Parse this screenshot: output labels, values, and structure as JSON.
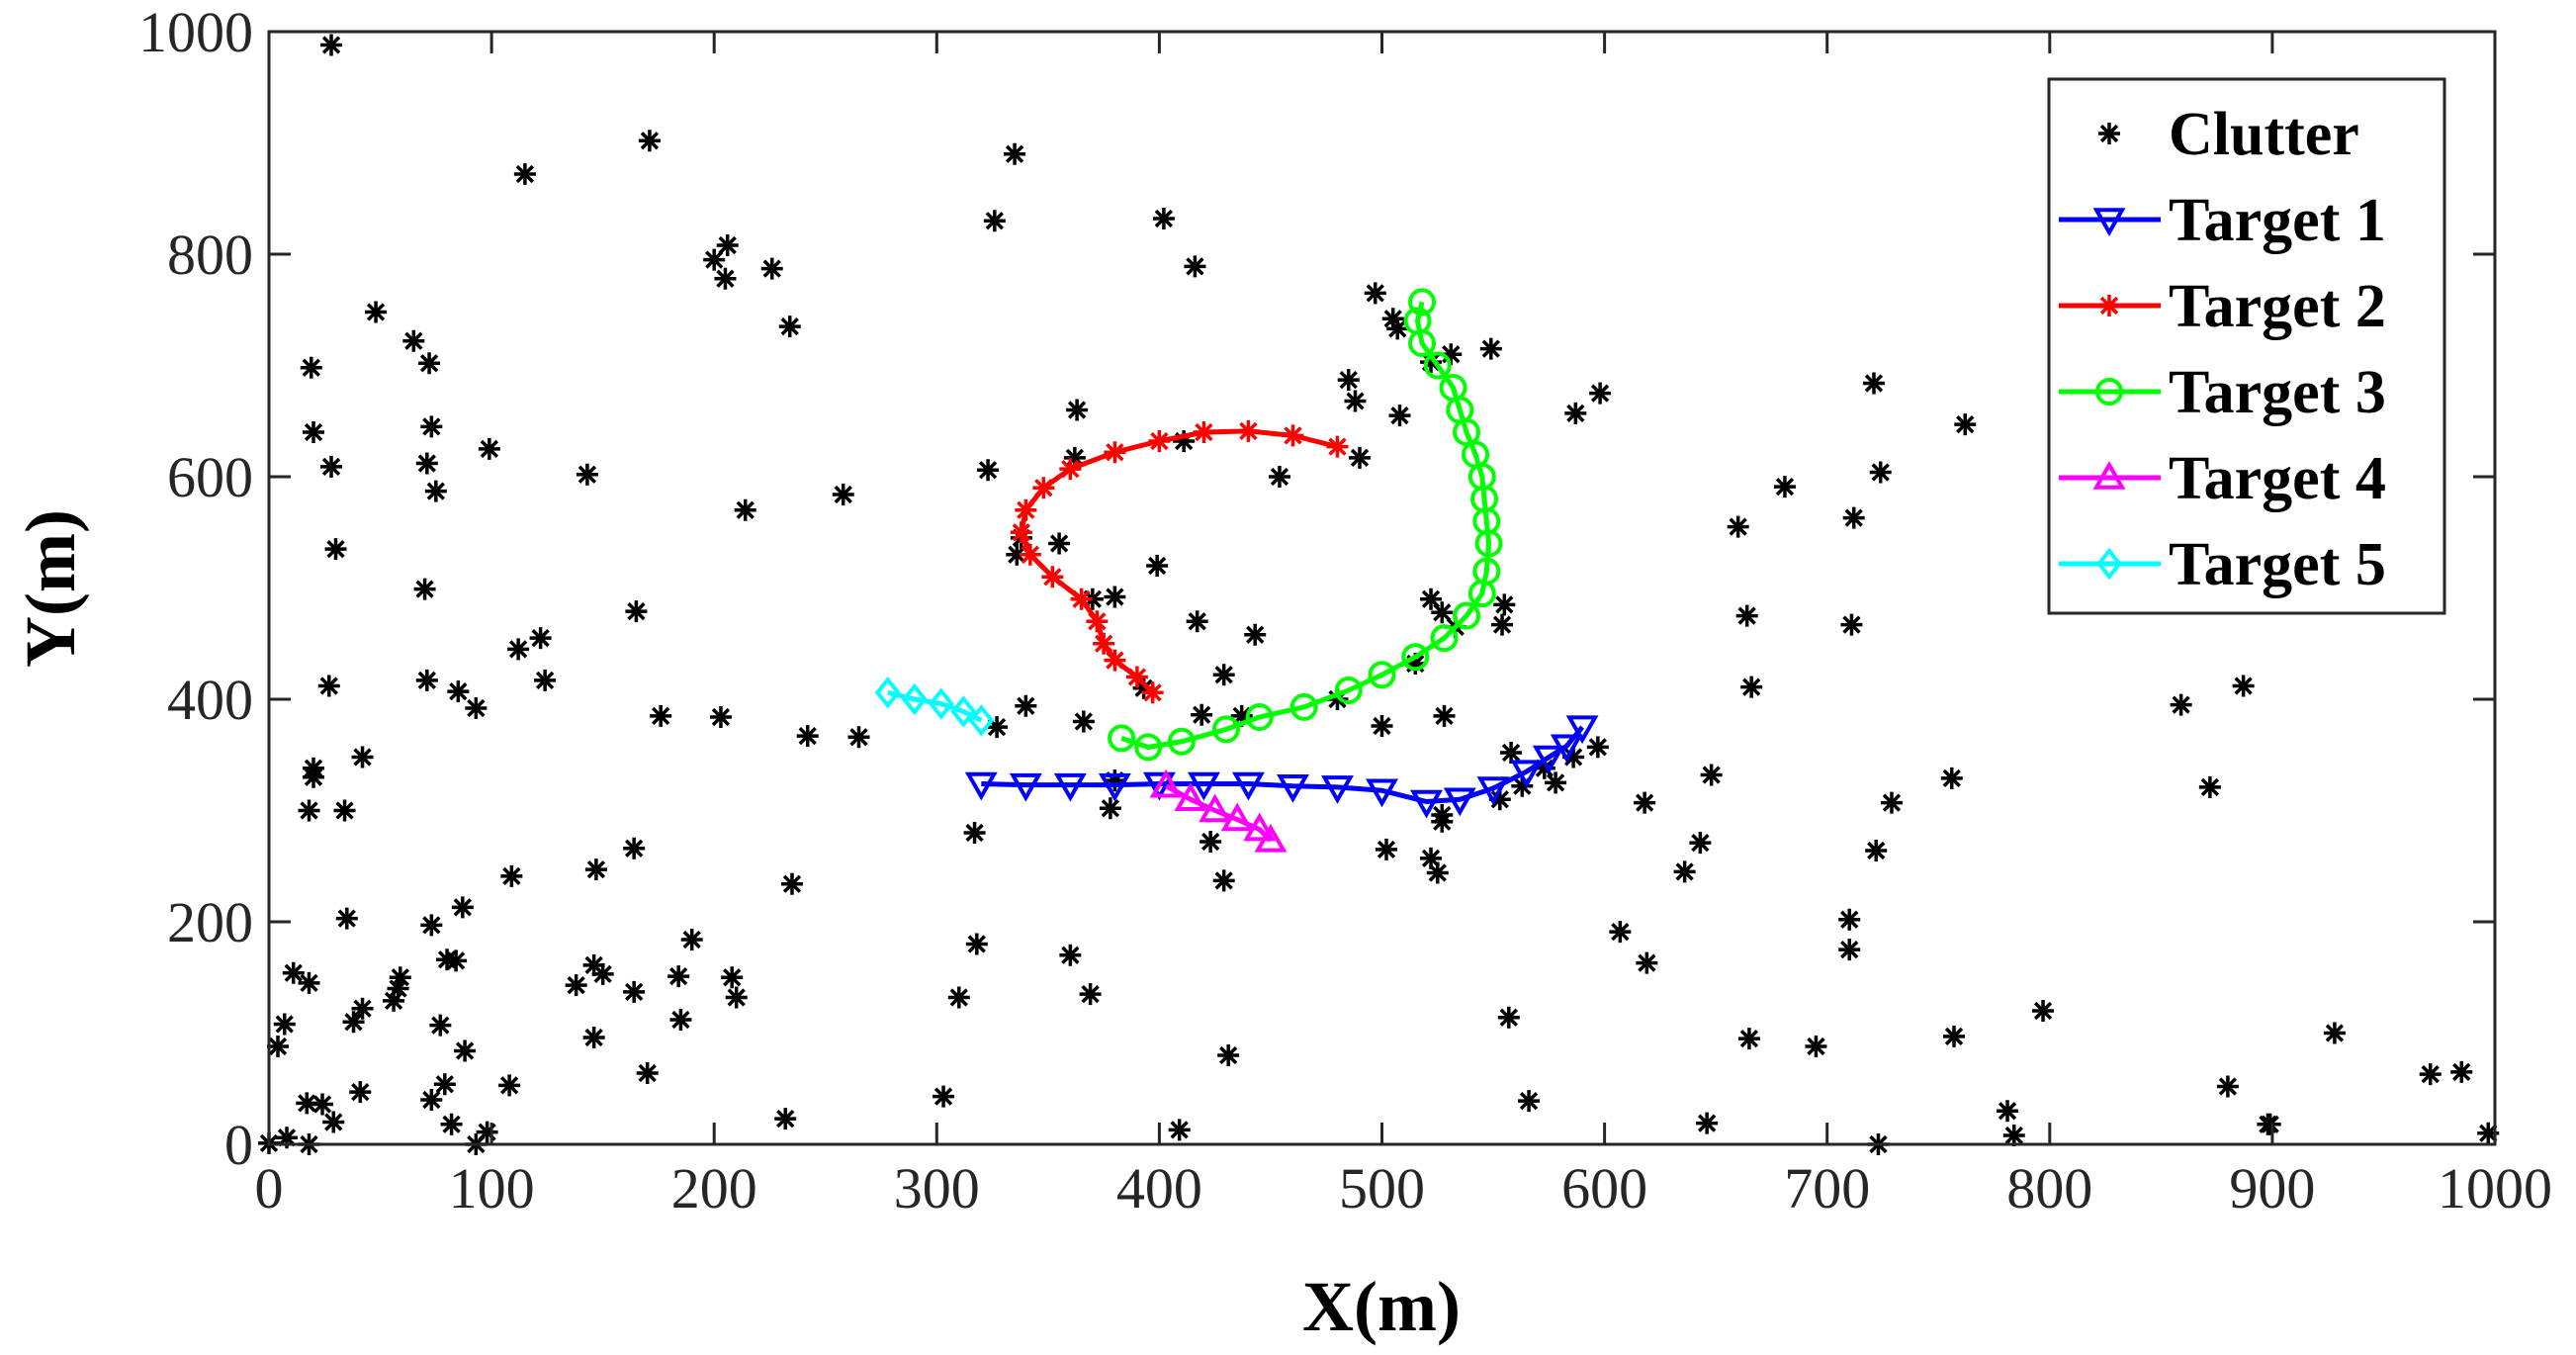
{
  "chart_data": {
    "type": "scatter",
    "xlabel": "X(m)",
    "ylabel": "Y(m)",
    "xlim": [
      0,
      1000
    ],
    "ylim": [
      0,
      1000
    ],
    "xticks": [
      "0",
      "100",
      "200",
      "300",
      "400",
      "500",
      "600",
      "700",
      "800",
      "900",
      "1000"
    ],
    "yticks": [
      "0",
      "200",
      "400",
      "600",
      "800",
      "1000"
    ],
    "grid": false,
    "legend_position": "top-right",
    "clutter": {
      "name": "Clutter",
      "color": "#000000",
      "marker": "asterisk",
      "points": [
        [
          28,
          988
        ],
        [
          171,
          902
        ],
        [
          335,
          890
        ],
        [
          115,
          872
        ],
        [
          326,
          830
        ],
        [
          402,
          832
        ],
        [
          416,
          789
        ],
        [
          200,
          795
        ],
        [
          206,
          808
        ],
        [
          226,
          787
        ],
        [
          205,
          778
        ],
        [
          234,
          735
        ],
        [
          48,
          748
        ],
        [
          65,
          722
        ],
        [
          72,
          702
        ],
        [
          19,
          698
        ],
        [
          497,
          765
        ],
        [
          505,
          742
        ],
        [
          507,
          733
        ],
        [
          531,
          710
        ],
        [
          549,
          715
        ],
        [
          522,
          703
        ],
        [
          485,
          687
        ],
        [
          488,
          668
        ],
        [
          598,
          675
        ],
        [
          587,
          657
        ],
        [
          508,
          655
        ],
        [
          20,
          640
        ],
        [
          73,
          645
        ],
        [
          99,
          625
        ],
        [
          71,
          612
        ],
        [
          28,
          609
        ],
        [
          75,
          587
        ],
        [
          143,
          602
        ],
        [
          214,
          570
        ],
        [
          258,
          584
        ],
        [
          363,
          660
        ],
        [
          362,
          617
        ],
        [
          411,
          632
        ],
        [
          454,
          600
        ],
        [
          490,
          617
        ],
        [
          323,
          606
        ],
        [
          30,
          535
        ],
        [
          336,
          530
        ],
        [
          338,
          545
        ],
        [
          355,
          540
        ],
        [
          399,
          520
        ],
        [
          370,
          490
        ],
        [
          380,
          492
        ],
        [
          70,
          499
        ],
        [
          165,
          479
        ],
        [
          522,
          490
        ],
        [
          527,
          478
        ],
        [
          554,
          467
        ],
        [
          555,
          485
        ],
        [
          533,
          465
        ],
        [
          417,
          470
        ],
        [
          443,
          458
        ],
        [
          122,
          455
        ],
        [
          112,
          445
        ],
        [
          124,
          417
        ],
        [
          27,
          412
        ],
        [
          71,
          417
        ],
        [
          85,
          407
        ],
        [
          93,
          392
        ],
        [
          176,
          385
        ],
        [
          203,
          384
        ],
        [
          242,
          367
        ],
        [
          265,
          366
        ],
        [
          327,
          375
        ],
        [
          366,
          380
        ],
        [
          340,
          394
        ],
        [
          429,
          422
        ],
        [
          480,
          400
        ],
        [
          393,
          410
        ],
        [
          437,
          385
        ],
        [
          419,
          386
        ],
        [
          500,
          376
        ],
        [
          528,
          385
        ],
        [
          515,
          432
        ],
        [
          558,
          352
        ],
        [
          573,
          338
        ],
        [
          578,
          325
        ],
        [
          586,
          348
        ],
        [
          597,
          357
        ],
        [
          563,
          322
        ],
        [
          553,
          310
        ],
        [
          527,
          296
        ],
        [
          527,
          290
        ],
        [
          522,
          257
        ],
        [
          525,
          244
        ],
        [
          502,
          265
        ],
        [
          378,
          302
        ],
        [
          380,
          327
        ],
        [
          423,
          272
        ],
        [
          429,
          237
        ],
        [
          317,
          280
        ],
        [
          42,
          348
        ],
        [
          20,
          338
        ],
        [
          18,
          300
        ],
        [
          34,
          300
        ],
        [
          20,
          330
        ],
        [
          109,
          241
        ],
        [
          147,
          247
        ],
        [
          164,
          266
        ],
        [
          235,
          234
        ],
        [
          87,
          213
        ],
        [
          35,
          203
        ],
        [
          73,
          197
        ],
        [
          190,
          184
        ],
        [
          318,
          180
        ],
        [
          360,
          170
        ],
        [
          11,
          154
        ],
        [
          59,
          150
        ],
        [
          146,
          161
        ],
        [
          150,
          153
        ],
        [
          184,
          151
        ],
        [
          208,
          150
        ],
        [
          138,
          143
        ],
        [
          210,
          132
        ],
        [
          310,
          132
        ],
        [
          369,
          135
        ],
        [
          18,
          145
        ],
        [
          58,
          140
        ],
        [
          80,
          166
        ],
        [
          84,
          165
        ],
        [
          164,
          137
        ],
        [
          56,
          129
        ],
        [
          42,
          122
        ],
        [
          38,
          110
        ],
        [
          7,
          108
        ],
        [
          146,
          96
        ],
        [
          185,
          112
        ],
        [
          77,
          107
        ],
        [
          88,
          84
        ],
        [
          4,
          88
        ],
        [
          108,
          53
        ],
        [
          79,
          54
        ],
        [
          303,
          43
        ],
        [
          73,
          40
        ],
        [
          17,
          37
        ],
        [
          41,
          47
        ],
        [
          29,
          20
        ],
        [
          24,
          36
        ],
        [
          0,
          1
        ],
        [
          8,
          6
        ],
        [
          18,
          0
        ],
        [
          82,
          18
        ],
        [
          93,
          0
        ],
        [
          98,
          11
        ],
        [
          170,
          64
        ],
        [
          232,
          23
        ],
        [
          409,
          13
        ],
        [
          431,
          80
        ],
        [
          557,
          114
        ],
        [
          566,
          39
        ],
        [
          607,
          191
        ],
        [
          619,
          163
        ],
        [
          618,
          307
        ],
        [
          636,
          245
        ],
        [
          643,
          271
        ],
        [
          648,
          332
        ],
        [
          646,
          19
        ],
        [
          660,
          555
        ],
        [
          664,
          475
        ],
        [
          666,
          411
        ],
        [
          665,
          95
        ],
        [
          681,
          591
        ],
        [
          695,
          88
        ],
        [
          711,
          467
        ],
        [
          712,
          563
        ],
        [
          710,
          175
        ],
        [
          710,
          202
        ],
        [
          721,
          684
        ],
        [
          724,
          604
        ],
        [
          722,
          264
        ],
        [
          729,
          307
        ],
        [
          723,
          0
        ],
        [
          756,
          329
        ],
        [
          757,
          97
        ],
        [
          762,
          647
        ],
        [
          781,
          30
        ],
        [
          784,
          8
        ],
        [
          797,
          120
        ],
        [
          859,
          395
        ],
        [
          872,
          321
        ],
        [
          887,
          412
        ],
        [
          880,
          52
        ],
        [
          898,
          18
        ],
        [
          899,
          18
        ],
        [
          928,
          100
        ],
        [
          971,
          63
        ],
        [
          985,
          65
        ],
        [
          997,
          10
        ]
      ]
    },
    "series": [
      {
        "name": "Target 1",
        "color": "#0000ff",
        "marker": "triangle-down",
        "points": [
          [
            320,
            324
          ],
          [
            340,
            323
          ],
          [
            360,
            323
          ],
          [
            380,
            323
          ],
          [
            400,
            324
          ],
          [
            420,
            324
          ],
          [
            440,
            324
          ],
          [
            460,
            322
          ],
          [
            480,
            321
          ],
          [
            500,
            318
          ],
          [
            520,
            308
          ],
          [
            535,
            310
          ],
          [
            550,
            320
          ],
          [
            565,
            335
          ],
          [
            575,
            348
          ],
          [
            583,
            358
          ],
          [
            590,
            375
          ]
        ]
      },
      {
        "name": "Target 2",
        "color": "#ff0000",
        "marker": "asterisk",
        "points": [
          [
            480,
            627
          ],
          [
            460,
            637
          ],
          [
            440,
            641
          ],
          [
            420,
            640
          ],
          [
            400,
            632
          ],
          [
            380,
            622
          ],
          [
            360,
            607
          ],
          [
            348,
            590
          ],
          [
            340,
            570
          ],
          [
            338,
            550
          ],
          [
            342,
            530
          ],
          [
            352,
            510
          ],
          [
            365,
            490
          ],
          [
            372,
            470
          ],
          [
            375,
            450
          ],
          [
            380,
            435
          ],
          [
            390,
            420
          ],
          [
            397,
            406
          ]
        ]
      },
      {
        "name": "Target 3",
        "color": "#00ff00",
        "marker": "circle",
        "points": [
          [
            518,
            757
          ],
          [
            516,
            740
          ],
          [
            518,
            720
          ],
          [
            525,
            700
          ],
          [
            532,
            680
          ],
          [
            535,
            660
          ],
          [
            538,
            640
          ],
          [
            542,
            620
          ],
          [
            545,
            600
          ],
          [
            546,
            580
          ],
          [
            547,
            560
          ],
          [
            548,
            540
          ],
          [
            547,
            515
          ],
          [
            545,
            495
          ],
          [
            538,
            475
          ],
          [
            528,
            455
          ],
          [
            515,
            438
          ],
          [
            500,
            422
          ],
          [
            485,
            408
          ],
          [
            465,
            393
          ],
          [
            445,
            384
          ],
          [
            430,
            373
          ],
          [
            410,
            362
          ],
          [
            395,
            357
          ],
          [
            383,
            365
          ]
        ]
      },
      {
        "name": "Target 4",
        "color": "#ff00ff",
        "marker": "triangle-up",
        "points": [
          [
            403,
            322
          ],
          [
            414,
            310
          ],
          [
            425,
            300
          ],
          [
            435,
            292
          ],
          [
            445,
            283
          ],
          [
            450,
            273
          ]
        ]
      },
      {
        "name": "Target 5",
        "color": "#00ffff",
        "marker": "diamond",
        "points": [
          [
            278,
            406
          ],
          [
            290,
            400
          ],
          [
            302,
            396
          ],
          [
            312,
            389
          ],
          [
            320,
            381
          ]
        ]
      }
    ],
    "legend_entries": [
      "Clutter",
      "Target 1",
      "Target 2",
      "Target 3",
      "Target 4",
      "Target 5"
    ]
  }
}
